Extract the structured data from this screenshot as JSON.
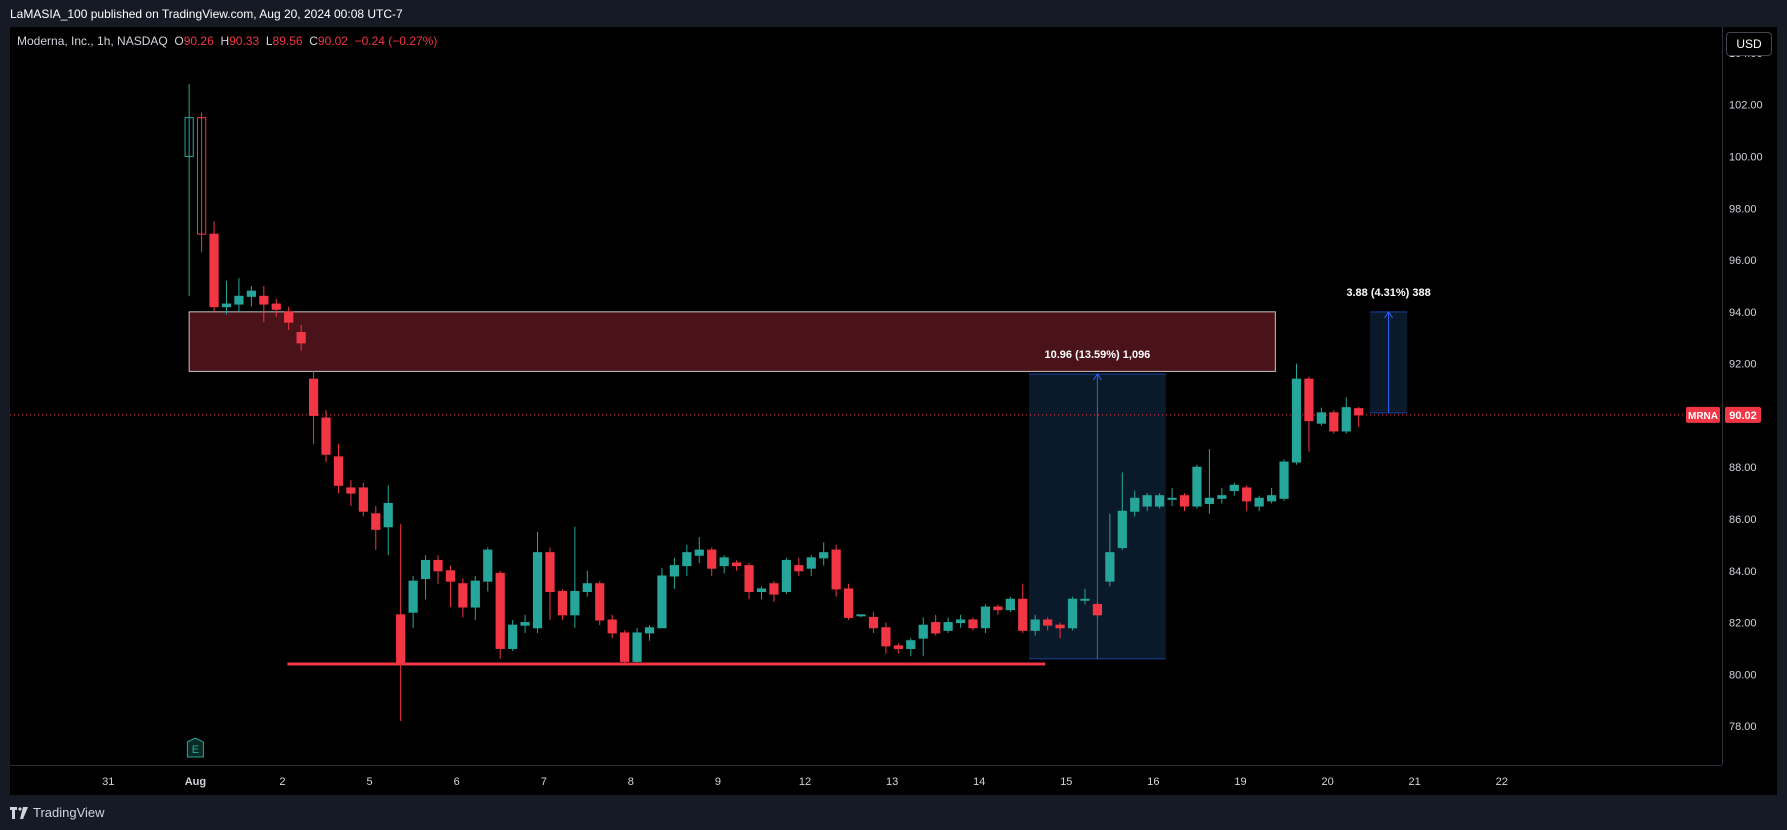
{
  "header": {
    "published_text": "LaMASIA_100 published on TradingView.com, Aug 20, 2024 00:08 UTC-7"
  },
  "legend": {
    "symbol": "Moderna, Inc., 1h, NASDAQ",
    "o_label": "O",
    "o_value": "90.26",
    "h_label": "H",
    "h_value": "90.33",
    "l_label": "L",
    "l_value": "89.56",
    "c_label": "C",
    "c_value": "90.02",
    "change": "−0.24 (−0.27%)"
  },
  "currency": "USD",
  "last_price": {
    "ticker": "MRNA",
    "value": "90.02"
  },
  "footer": {
    "brand": "TradingView"
  },
  "colors": {
    "up": "#26a69a",
    "down": "#f23645",
    "background": "#000000",
    "resistance_zone": "#4a1219",
    "measure_box": "#0b1a2a",
    "support_line": "#f23645"
  },
  "chart_data": {
    "type": "candlestick",
    "ylim": [
      76.5,
      105
    ],
    "y_ticks": [
      "78.00",
      "80.00",
      "82.00",
      "84.00",
      "86.00",
      "88.00",
      "90.00",
      "92.00",
      "94.00",
      "96.00",
      "98.00",
      "100.00",
      "102.00",
      "104.00"
    ],
    "x_ticks": [
      "31",
      "Aug",
      "2",
      "5",
      "6",
      "7",
      "8",
      "9",
      "12",
      "13",
      "14",
      "15",
      "16",
      "19",
      "20",
      "21",
      "22"
    ],
    "x_index_range": [
      -14.4,
      123.2
    ],
    "x_tick_positions": [
      -6.5,
      0.5,
      7.5,
      14.5,
      21.5,
      28.5,
      35.5,
      42.5,
      49.5,
      56.5,
      63.5,
      70.5,
      77.5,
      84.5,
      91.5,
      98.5,
      105.5
    ],
    "candles": [
      [
        100.0,
        101.5,
        99.0,
        102.8,
        94.6
      ],
      [
        101.5,
        97.0,
        96.5,
        101.7,
        96.3
      ],
      [
        97.0,
        94.2,
        94.0,
        97.5,
        94.0
      ],
      [
        94.2,
        94.3,
        94.0,
        95.2,
        93.9
      ],
      [
        94.3,
        94.6,
        94.0,
        95.3,
        94.0
      ],
      [
        94.6,
        94.8,
        94.3,
        95.0,
        94.2
      ],
      [
        94.6,
        94.3,
        94.0,
        95.0,
        93.6
      ],
      [
        94.3,
        94.1,
        93.9,
        94.5,
        93.8
      ],
      [
        94.0,
        93.6,
        93.4,
        94.2,
        93.3
      ],
      [
        93.2,
        92.8,
        92.7,
        93.5,
        92.5
      ],
      [
        91.4,
        90.0,
        88.9,
        91.7,
        88.9
      ],
      [
        89.9,
        88.5,
        88.3,
        90.2,
        88.2
      ],
      [
        88.4,
        87.3,
        87.1,
        88.9,
        87.0
      ],
      [
        87.2,
        87.0,
        86.6,
        87.5,
        86.5
      ],
      [
        87.2,
        86.3,
        86.2,
        87.4,
        86.1
      ],
      [
        86.2,
        85.6,
        85.0,
        86.5,
        84.8
      ],
      [
        85.7,
        86.6,
        84.6,
        87.3,
        84.6
      ],
      [
        82.3,
        80.4,
        78.2,
        85.8,
        78.2
      ],
      [
        82.4,
        83.6,
        81.8,
        83.8,
        81.8
      ],
      [
        83.7,
        84.4,
        83.2,
        84.6,
        82.9
      ],
      [
        84.4,
        84.0,
        83.6,
        84.6,
        83.5
      ],
      [
        84.0,
        83.6,
        83.4,
        84.2,
        82.6
      ],
      [
        83.5,
        82.6,
        82.3,
        83.7,
        82.2
      ],
      [
        82.6,
        83.6,
        82.4,
        83.8,
        82.1
      ],
      [
        83.6,
        84.8,
        83.3,
        84.9,
        83.2
      ],
      [
        83.9,
        81.0,
        80.6,
        84.0,
        80.6
      ],
      [
        81.0,
        81.9,
        80.9,
        82.1,
        80.9
      ],
      [
        81.9,
        82.0,
        81.7,
        82.3,
        81.6
      ],
      [
        81.8,
        84.7,
        81.6,
        85.5,
        81.6
      ],
      [
        84.7,
        83.2,
        82.1,
        84.9,
        82.1
      ],
      [
        83.2,
        82.3,
        82.1,
        83.3,
        82.1
      ],
      [
        82.3,
        83.2,
        81.8,
        85.7,
        81.8
      ],
      [
        83.2,
        83.5,
        83.0,
        84.0,
        83.0
      ],
      [
        83.5,
        82.1,
        81.9,
        83.6,
        81.9
      ],
      [
        82.1,
        81.6,
        81.5,
        82.3,
        81.4
      ],
      [
        81.6,
        80.5,
        80.4,
        81.7,
        80.4
      ],
      [
        80.5,
        81.6,
        80.4,
        81.8,
        80.4
      ],
      [
        81.6,
        81.8,
        81.4,
        81.9,
        81.3
      ],
      [
        81.8,
        83.8,
        81.8,
        84.1,
        81.8
      ],
      [
        83.8,
        84.2,
        83.4,
        84.5,
        83.3
      ],
      [
        84.2,
        84.7,
        84.0,
        85.0,
        83.8
      ],
      [
        84.6,
        84.8,
        84.5,
        85.3,
        84.3
      ],
      [
        84.8,
        84.1,
        84.0,
        84.9,
        83.8
      ],
      [
        84.2,
        84.5,
        84.0,
        84.6,
        83.9
      ],
      [
        84.3,
        84.2,
        84.0,
        84.4,
        84.0
      ],
      [
        84.2,
        83.2,
        83.0,
        84.3,
        82.9
      ],
      [
        83.2,
        83.3,
        83.0,
        83.4,
        82.9
      ],
      [
        83.5,
        83.1,
        82.9,
        83.6,
        82.8
      ],
      [
        83.2,
        84.4,
        83.1,
        84.5,
        83.1
      ],
      [
        84.2,
        84.0,
        83.9,
        84.5,
        83.8
      ],
      [
        84.1,
        84.5,
        84.0,
        84.6,
        83.8
      ],
      [
        84.5,
        84.7,
        84.3,
        85.1,
        84.2
      ],
      [
        84.8,
        83.3,
        83.0,
        85.0,
        83.0
      ],
      [
        83.3,
        82.2,
        82.1,
        83.5,
        82.1
      ],
      [
        82.3,
        82.3,
        82.1,
        82.3,
        82.2
      ],
      [
        82.2,
        81.8,
        81.6,
        82.4,
        81.6
      ],
      [
        81.8,
        81.1,
        80.9,
        82.0,
        80.8
      ],
      [
        81.1,
        81.0,
        80.9,
        81.2,
        80.8
      ],
      [
        81.0,
        81.3,
        80.9,
        81.4,
        80.7
      ],
      [
        81.4,
        81.9,
        81.4,
        82.2,
        80.7
      ],
      [
        82.0,
        81.6,
        81.6,
        82.3,
        81.5
      ],
      [
        81.7,
        82.0,
        81.7,
        82.2,
        81.6
      ],
      [
        82.0,
        82.1,
        81.9,
        82.3,
        81.8
      ],
      [
        82.1,
        81.8,
        81.8,
        82.2,
        81.7
      ],
      [
        81.8,
        82.6,
        81.7,
        82.7,
        81.6
      ],
      [
        82.6,
        82.5,
        82.4,
        82.7,
        82.3
      ],
      [
        82.5,
        82.9,
        82.4,
        83.0,
        82.4
      ],
      [
        82.9,
        81.7,
        81.6,
        83.5,
        81.6
      ],
      [
        81.7,
        82.1,
        81.5,
        82.3,
        81.5
      ],
      [
        82.1,
        81.9,
        81.8,
        82.2,
        81.7
      ],
      [
        81.9,
        81.8,
        81.6,
        82.0,
        81.4
      ],
      [
        81.8,
        82.9,
        81.7,
        83.0,
        81.7
      ],
      [
        82.9,
        82.9,
        82.7,
        83.3,
        82.7
      ],
      [
        82.7,
        82.3,
        82.2,
        82.8,
        82.2
      ],
      [
        83.6,
        84.7,
        83.4,
        86.2,
        83.4
      ],
      [
        84.9,
        86.3,
        84.8,
        87.8,
        84.8
      ],
      [
        86.3,
        86.8,
        86.2,
        87.1,
        86.1
      ],
      [
        86.5,
        86.9,
        86.3,
        87.0,
        86.3
      ],
      [
        86.5,
        86.9,
        86.4,
        87.0,
        86.4
      ],
      [
        86.8,
        86.8,
        86.7,
        87.2,
        86.5
      ],
      [
        86.9,
        86.5,
        86.4,
        87.0,
        86.3
      ],
      [
        86.5,
        88.0,
        86.4,
        88.1,
        86.4
      ],
      [
        86.6,
        86.8,
        86.4,
        88.7,
        86.2
      ],
      [
        86.8,
        86.9,
        86.7,
        87.2,
        86.6
      ],
      [
        87.1,
        87.3,
        86.9,
        87.4,
        86.9
      ],
      [
        87.2,
        86.7,
        86.3,
        87.3,
        86.3
      ],
      [
        86.5,
        86.8,
        86.4,
        86.9,
        86.3
      ],
      [
        86.7,
        86.9,
        86.6,
        87.2,
        86.6
      ],
      [
        86.8,
        88.2,
        86.7,
        88.3,
        86.7
      ],
      [
        88.2,
        91.4,
        88.1,
        92.0,
        88.1
      ],
      [
        91.4,
        89.8,
        89.7,
        91.5,
        88.6
      ],
      [
        89.7,
        90.1,
        89.6,
        90.3,
        89.6
      ],
      [
        90.1,
        89.4,
        89.3,
        90.2,
        89.3
      ],
      [
        89.4,
        90.3,
        89.3,
        90.7,
        89.3
      ],
      [
        90.26,
        90.02,
        89.9,
        90.33,
        89.56
      ]
    ],
    "candle_indices": [
      0,
      1,
      2,
      3,
      4,
      5,
      6,
      7,
      8,
      9,
      10,
      11,
      12,
      13,
      14,
      15,
      16,
      17,
      18,
      19,
      20,
      21,
      22,
      23,
      24,
      25,
      26,
      27,
      28,
      29,
      30,
      31,
      32,
      33,
      34,
      35,
      36,
      37,
      38,
      39,
      40,
      41,
      42,
      43,
      44,
      45,
      46,
      47,
      48,
      49,
      50,
      51,
      52,
      53,
      54,
      55,
      56,
      57,
      58,
      59,
      60,
      61,
      62,
      63,
      64,
      65,
      66,
      67,
      68,
      69,
      70,
      71,
      72,
      73,
      74,
      75,
      76,
      77,
      78,
      79,
      80,
      81,
      82,
      83,
      84,
      85,
      86,
      87,
      88,
      89,
      90,
      91,
      92,
      93,
      94
    ],
    "resistance_zone": {
      "x_from": 0.0,
      "x_to": 87.3,
      "y_from": 91.7,
      "y_to": 94.0
    },
    "support_line": {
      "x_from": 7.9,
      "x_to": 68.8,
      "y": 80.4
    },
    "measure_1": {
      "x_from": 67.5,
      "x_to": 78.5,
      "y_from": 80.6,
      "y_to": 91.6,
      "label": "10.96 (13.59%) 1,096"
    },
    "measure_2": {
      "x_from": 94.9,
      "x_to": 97.9,
      "y_from": 90.1,
      "y_to": 94.0,
      "label": "3.88 (4.31%) 388"
    },
    "last_price_line": 90.02,
    "event_marker": {
      "x": 0.5,
      "label": "E"
    }
  }
}
